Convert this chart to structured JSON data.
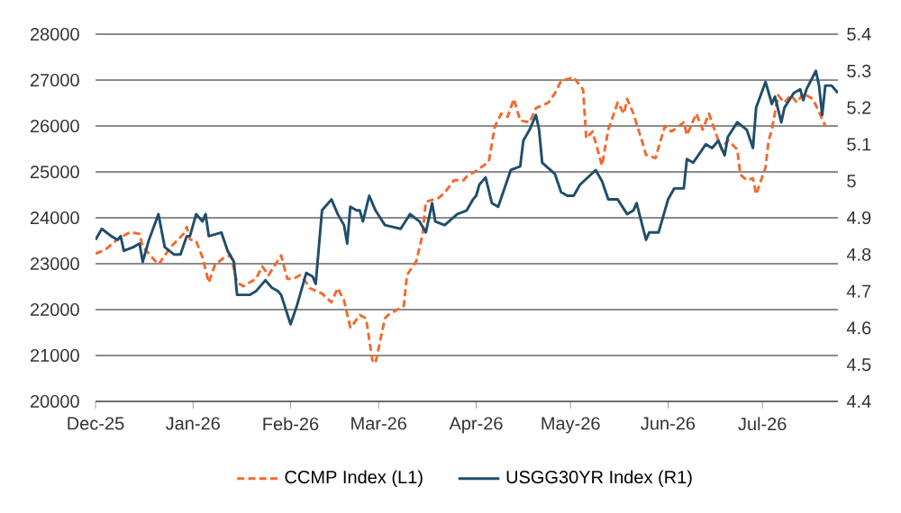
{
  "chart_data": {
    "type": "line",
    "xlim": [
      "2025-12-01",
      "2026-07-25"
    ],
    "xticks": [
      {
        "value": "2025-12-01",
        "label": "Dec-25"
      },
      {
        "value": "2026-01-01",
        "label": "Jan-26"
      },
      {
        "value": "2026-02-01",
        "label": "Feb-26"
      },
      {
        "value": "2026-03-01",
        "label": "Mar-26"
      },
      {
        "value": "2026-04-01",
        "label": "Apr-26"
      },
      {
        "value": "2026-05-01",
        "label": "May-26"
      },
      {
        "value": "2026-06-01",
        "label": "Jun-26"
      },
      {
        "value": "2026-07-01",
        "label": "Jul-26"
      }
    ],
    "ylim": [
      20000,
      28000
    ],
    "yticks": [
      20000,
      21000,
      22000,
      23000,
      24000,
      25000,
      26000,
      27000,
      28000
    ],
    "y2lim": [
      4.4,
      5.4
    ],
    "y2ticks": [
      4.4,
      4.5,
      4.6,
      4.7,
      4.8,
      4.9,
      5,
      5.1,
      5.2,
      5.3,
      5.4
    ],
    "grid": "y",
    "legend": "bottom",
    "series": [
      {
        "name": "CCMP Index (L1)",
        "color": "#f26a2e",
        "line_style": "dashed",
        "x": [
          "2025-12-01",
          "2025-12-04",
          "2025-12-08",
          "2025-12-12",
          "2025-12-15",
          "2025-12-16",
          "2025-12-21",
          "2025-12-25",
          "2025-12-29",
          "2025-12-30",
          "2025-12-31",
          "2026-01-02",
          "2026-01-04",
          "2026-01-06",
          "2026-01-08",
          "2026-01-11",
          "2026-01-13",
          "2026-01-15",
          "2026-01-17",
          "2026-01-21",
          "2026-01-23",
          "2026-01-25",
          "2026-01-29",
          "2026-01-31",
          "2026-02-02",
          "2026-02-04",
          "2026-02-06",
          "2026-02-07",
          "2026-02-11",
          "2026-02-14",
          "2026-02-16",
          "2026-02-18",
          "2026-02-20",
          "2026-02-21",
          "2026-02-23",
          "2026-02-25",
          "2026-02-27",
          "2026-02-28",
          "2026-03-03",
          "2026-03-04",
          "2026-03-09",
          "2026-03-10",
          "2026-03-13",
          "2026-03-15",
          "2026-03-16",
          "2026-03-20",
          "2026-03-22",
          "2026-03-25",
          "2026-03-28",
          "2026-03-29",
          "2026-04-01",
          "2026-04-05",
          "2026-04-07",
          "2026-04-09",
          "2026-04-11",
          "2026-04-13",
          "2026-04-15",
          "2026-04-18",
          "2026-04-20",
          "2026-04-24",
          "2026-04-26",
          "2026-04-28",
          "2026-05-02",
          "2026-05-05",
          "2026-05-06",
          "2026-05-08",
          "2026-05-11",
          "2026-05-13",
          "2026-05-16",
          "2026-05-18",
          "2026-05-19",
          "2026-05-21",
          "2026-05-24",
          "2026-05-25",
          "2026-05-28",
          "2026-05-31",
          "2026-06-02",
          "2026-06-03",
          "2026-06-06",
          "2026-06-07",
          "2026-06-10",
          "2026-06-12",
          "2026-06-14",
          "2026-06-16",
          "2026-06-18",
          "2026-06-20",
          "2026-06-23",
          "2026-06-24",
          "2026-06-26",
          "2026-06-28",
          "2026-06-29",
          "2026-07-02",
          "2026-07-03",
          "2026-07-04",
          "2026-07-06",
          "2026-07-08",
          "2026-07-10",
          "2026-07-12",
          "2026-07-14",
          "2026-07-17",
          "2026-07-19",
          "2026-07-21"
        ],
        "values": [
          23220,
          23300,
          23530,
          23690,
          23650,
          23370,
          22980,
          23370,
          23650,
          23800,
          23530,
          23490,
          23140,
          22590,
          22980,
          23140,
          23180,
          22590,
          22510,
          22670,
          22940,
          22750,
          23180,
          22670,
          22670,
          22750,
          22590,
          22470,
          22350,
          22160,
          22470,
          22200,
          21610,
          21690,
          21880,
          21810,
          20900,
          20830,
          21810,
          21880,
          22080,
          22750,
          23060,
          23650,
          24350,
          24430,
          24550,
          24820,
          24820,
          24900,
          25020,
          25220,
          26000,
          26270,
          26200,
          26590,
          26120,
          26080,
          26390,
          26510,
          26710,
          26980,
          27060,
          26790,
          25730,
          25880,
          25140,
          25920,
          26510,
          26270,
          26590,
          26270,
          25610,
          25370,
          25300,
          26000,
          25880,
          25920,
          26080,
          25800,
          26270,
          25920,
          26270,
          25880,
          25490,
          25690,
          25490,
          24940,
          24820,
          24860,
          24510,
          25100,
          25690,
          25920,
          26670,
          26510,
          26670,
          26510,
          26710,
          26590,
          26310,
          26000
        ]
      },
      {
        "name": "USGG30YR Index (R1)",
        "color": "#1f4e6b",
        "line_style": "solid",
        "axis": "y2",
        "x": [
          "2025-12-01",
          "2025-12-03",
          "2025-12-06",
          "2025-12-08",
          "2025-12-09",
          "2025-12-10",
          "2025-12-13",
          "2025-12-15",
          "2025-12-16",
          "2025-12-18",
          "2025-12-21",
          "2025-12-23",
          "2025-12-26",
          "2025-12-28",
          "2025-12-30",
          "2025-12-31",
          "2026-01-02",
          "2026-01-04",
          "2026-01-05",
          "2026-01-06",
          "2026-01-10",
          "2026-01-12",
          "2026-01-14",
          "2026-01-15",
          "2026-01-19",
          "2026-01-21",
          "2026-01-24",
          "2026-01-26",
          "2026-01-28",
          "2026-01-29",
          "2026-02-01",
          "2026-02-03",
          "2026-02-06",
          "2026-02-08",
          "2026-02-09",
          "2026-02-11",
          "2026-02-14",
          "2026-02-16",
          "2026-02-18",
          "2026-02-19",
          "2026-02-20",
          "2026-02-22",
          "2026-02-23",
          "2026-02-24",
          "2026-02-26",
          "2026-02-28",
          "2026-03-03",
          "2026-03-08",
          "2026-03-11",
          "2026-03-14",
          "2026-03-16",
          "2026-03-18",
          "2026-03-19",
          "2026-03-22",
          "2026-03-26",
          "2026-03-29",
          "2026-03-31",
          "2026-04-01",
          "2026-04-02",
          "2026-04-04",
          "2026-04-06",
          "2026-04-08",
          "2026-04-12",
          "2026-04-15",
          "2026-04-16",
          "2026-04-18",
          "2026-04-20",
          "2026-04-21",
          "2026-04-22",
          "2026-04-26",
          "2026-04-28",
          "2026-04-30",
          "2026-05-02",
          "2026-05-04",
          "2026-05-09",
          "2026-05-11",
          "2026-05-13",
          "2026-05-16",
          "2026-05-19",
          "2026-05-21",
          "2026-05-22",
          "2026-05-25",
          "2026-05-26",
          "2026-05-29",
          "2026-06-01",
          "2026-06-03",
          "2026-06-06",
          "2026-06-07",
          "2026-06-09",
          "2026-06-13",
          "2026-06-15",
          "2026-06-17",
          "2026-06-19",
          "2026-06-20",
          "2026-06-23",
          "2026-06-26",
          "2026-06-28",
          "2026-06-29",
          "2026-07-02",
          "2026-07-04",
          "2026-07-05",
          "2026-07-07",
          "2026-07-08",
          "2026-07-11",
          "2026-07-13",
          "2026-07-14",
          "2026-07-15",
          "2026-07-18",
          "2026-07-19",
          "2026-07-20",
          "2026-07-21",
          "2026-07-23",
          "2026-07-25"
        ],
        "values": [
          4.84,
          4.87,
          4.85,
          4.84,
          4.85,
          4.81,
          4.82,
          4.83,
          4.78,
          4.84,
          4.91,
          4.82,
          4.8,
          4.8,
          4.85,
          4.85,
          4.91,
          4.89,
          4.91,
          4.85,
          4.86,
          4.81,
          4.78,
          4.69,
          4.69,
          4.7,
          4.73,
          4.71,
          4.7,
          4.69,
          4.61,
          4.66,
          4.75,
          4.74,
          4.72,
          4.92,
          4.95,
          4.91,
          4.88,
          4.83,
          4.93,
          4.92,
          4.92,
          4.89,
          4.96,
          4.92,
          4.88,
          4.87,
          4.91,
          4.89,
          4.86,
          4.94,
          4.89,
          4.88,
          4.91,
          4.92,
          4.95,
          4.96,
          4.99,
          5.01,
          4.94,
          4.93,
          5.03,
          5.04,
          5.11,
          5.14,
          5.18,
          5.14,
          5.05,
          5.02,
          4.97,
          4.96,
          4.96,
          4.99,
          5.03,
          5.0,
          4.95,
          4.95,
          4.91,
          4.92,
          4.94,
          4.84,
          4.86,
          4.86,
          4.95,
          4.98,
          4.98,
          5.06,
          5.05,
          5.1,
          5.09,
          5.11,
          5.07,
          5.12,
          5.16,
          5.14,
          5.09,
          5.2,
          5.27,
          5.21,
          5.23,
          5.16,
          5.2,
          5.24,
          5.25,
          5.22,
          5.25,
          5.3,
          5.26,
          5.18,
          5.26,
          5.26,
          5.24
        ]
      }
    ]
  }
}
